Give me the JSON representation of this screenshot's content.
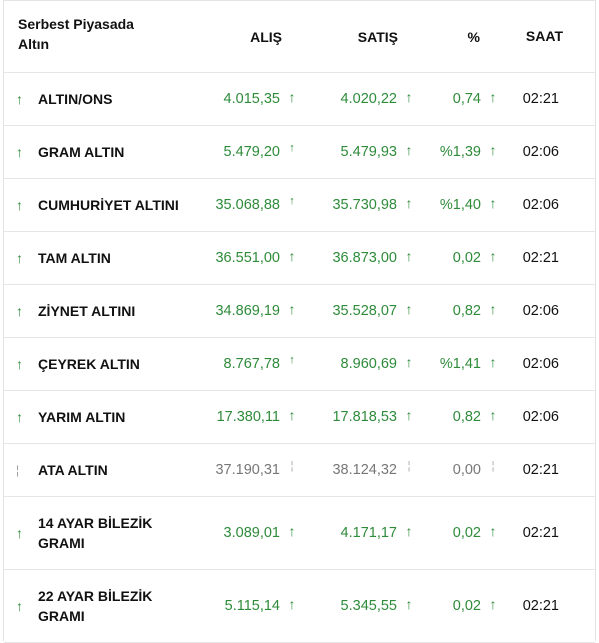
{
  "header": {
    "title": "Serbest Piyasada Altın",
    "buy": "ALIŞ",
    "sell": "SATIŞ",
    "pct": "%",
    "time": "SAAT"
  },
  "rows": [
    {
      "name": "ALTIN/ONS",
      "buy": "4.015,35",
      "sell": "4.020,22",
      "pct": "0,74",
      "time": "02:21"
    },
    {
      "name": "GRAM ALTIN",
      "buy": "5.479,20",
      "sell": "5.479,93",
      "pct": "%1,39",
      "time": "02:06"
    },
    {
      "name": "CUMHURİYET ALTINI",
      "buy": "35.068,88",
      "sell": "35.730,98",
      "pct": "%1,40",
      "time": "02:06"
    },
    {
      "name": "TAM ALTIN",
      "buy": "36.551,00",
      "sell": "36.873,00",
      "pct": "0,02",
      "time": "02:21"
    },
    {
      "name": "ZİYNET ALTINI",
      "buy": "34.869,19",
      "sell": "35.528,07",
      "pct": "0,82",
      "time": "02:06"
    },
    {
      "name": "ÇEYREK ALTIN",
      "buy": "8.767,78",
      "sell": "8.960,69",
      "pct": "%1,41",
      "time": "02:06"
    },
    {
      "name": "YARIM ALTIN",
      "buy": "17.380,11",
      "sell": "17.818,53",
      "pct": "0,82",
      "time": "02:06"
    },
    {
      "name": "ATA ALTIN",
      "buy": "37.190,31",
      "sell": "38.124,32",
      "pct": "0,00",
      "time": "02:21"
    },
    {
      "name": "14 AYAR BİLEZİK GRAMI",
      "buy": "3.089,01",
      "sell": "4.171,17",
      "pct": "0,02",
      "time": "02:21"
    },
    {
      "name": "22 AYAR BİLEZİK GRAMI",
      "buy": "5.115,14",
      "sell": "5.345,55",
      "pct": "0,02",
      "time": "02:21"
    }
  ],
  "colors": {
    "up": "#2e8b3a",
    "flat": "#999999"
  },
  "icons": {
    "up": "arrow-up-icon",
    "flat": "dash-icon"
  }
}
